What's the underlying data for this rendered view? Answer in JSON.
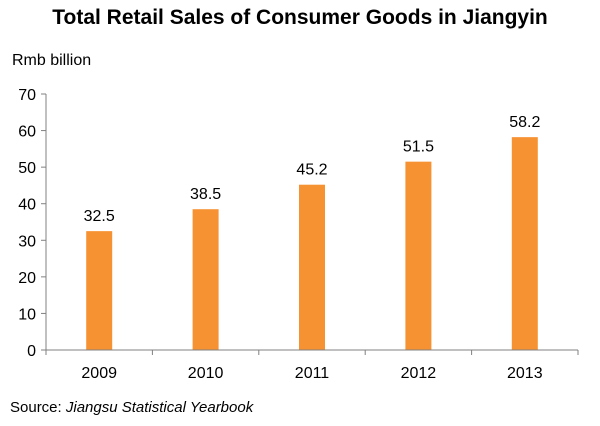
{
  "chart_data": {
    "type": "bar",
    "title": "Total Retail Sales of Consumer Goods in Jiangyin",
    "ylabel": "Rmb billion",
    "categories": [
      "2009",
      "2010",
      "2011",
      "2012",
      "2013"
    ],
    "values": [
      32.5,
      38.5,
      45.2,
      51.5,
      58.2
    ],
    "data_labels": [
      "32.5",
      "38.5",
      "45.2",
      "51.5",
      "58.2"
    ],
    "ylim": [
      0,
      70
    ],
    "yticks": [
      "0",
      "10",
      "20",
      "30",
      "40",
      "50",
      "60",
      "70"
    ],
    "grid": false,
    "legend": "none",
    "bar_color": "#F79232",
    "axis_color": "#808080"
  },
  "source": {
    "prefix": "Source: ",
    "name": "Jiangsu Statistical Yearbook"
  }
}
